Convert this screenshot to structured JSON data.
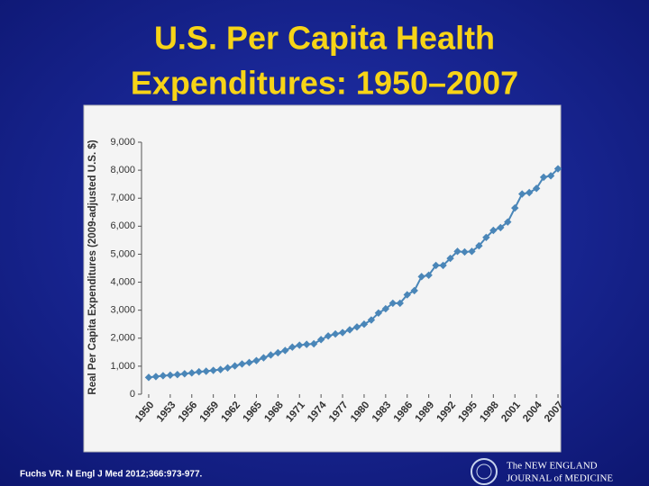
{
  "chart_data": {
    "type": "line",
    "title": [
      "U.S. Per Capita Health",
      "Expenditures: 1950–2007"
    ],
    "y_label": "Real Per Capita Expenditures (2009-adjusted U.S. $)",
    "color": "#4a86b8",
    "x": [
      1950,
      1951,
      1952,
      1953,
      1954,
      1955,
      1956,
      1957,
      1958,
      1959,
      1960,
      1961,
      1962,
      1963,
      1964,
      1965,
      1966,
      1967,
      1968,
      1969,
      1970,
      1971,
      1972,
      1973,
      1974,
      1975,
      1976,
      1977,
      1978,
      1979,
      1980,
      1981,
      1982,
      1983,
      1984,
      1985,
      1986,
      1987,
      1988,
      1989,
      1990,
      1991,
      1992,
      1993,
      1994,
      1995,
      1996,
      1997,
      1998,
      1999,
      2000,
      2001,
      2002,
      2003,
      2004,
      2005,
      2006,
      2007
    ],
    "y": [
      600,
      630,
      660,
      680,
      700,
      730,
      760,
      800,
      820,
      850,
      880,
      940,
      1010,
      1080,
      1130,
      1200,
      1300,
      1400,
      1480,
      1560,
      1680,
      1750,
      1780,
      1800,
      1950,
      2080,
      2150,
      2200,
      2300,
      2400,
      2500,
      2650,
      2900,
      3050,
      3250,
      3250,
      3550,
      3700,
      4200,
      4250,
      4600,
      4600,
      4850,
      5100,
      5080,
      5100,
      5300,
      5600,
      5850,
      5950,
      6150,
      6650,
      7150,
      7200,
      7350,
      7750,
      7800,
      8050
    ],
    "xlim": [
      1949,
      2008
    ],
    "xticks": [
      1950,
      1953,
      1956,
      1959,
      1962,
      1965,
      1968,
      1971,
      1974,
      1977,
      1980,
      1983,
      1986,
      1989,
      1992,
      1995,
      1998,
      2001,
      2004,
      2007
    ],
    "ylim": [
      0,
      9000
    ],
    "yticks": [
      0,
      {
        "value": 1000,
        "label": "1,000"
      },
      {
        "value": 2000,
        "label": "2,000"
      },
      {
        "value": 3000,
        "label": "3,000"
      },
      {
        "value": 4000,
        "label": "4,000"
      },
      {
        "value": 5000,
        "label": "5,000"
      },
      {
        "value": 6000,
        "label": "6,000"
      },
      {
        "value": 7000,
        "label": "7,000"
      },
      {
        "value": 8000,
        "label": "8,000"
      },
      {
        "value": 9000,
        "label": "9,000"
      }
    ]
  },
  "footer": {
    "citation": "Fuchs VR. N Engl J Med 2012;366:973-977.",
    "logo_line1": "The NEW ENGLAND",
    "logo_line2": "JOURNAL of MEDICINE"
  }
}
